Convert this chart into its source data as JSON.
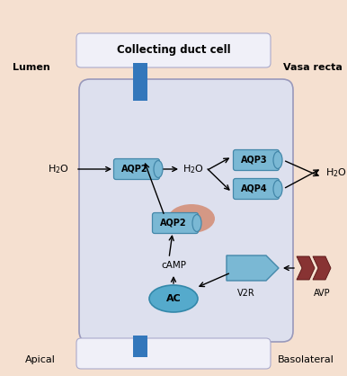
{
  "bg_color": "#f5e0d0",
  "cell_color": "#dde0ee",
  "cell_border_color": "#9999bb",
  "box_color": "#7ab8d4",
  "box_border": "#4488aa",
  "ac_color": "#55aacc",
  "ac_border": "#3388aa",
  "vesicle_color": "#d4907a",
  "v2r_color": "#7ab8d4",
  "v2r_border": "#4488aa",
  "avp_color": "#883333",
  "avp_border": "#551111",
  "membrane_color": "#3377bb",
  "bar_color": "#f0f0f8",
  "bar_border": "#aaaacc",
  "text_black": "#000000",
  "title": "Collecting duct cell",
  "lumen": "Lumen",
  "vasarecta": "Vasa recta",
  "apical": "Apical",
  "basolateral": "Basolateral"
}
